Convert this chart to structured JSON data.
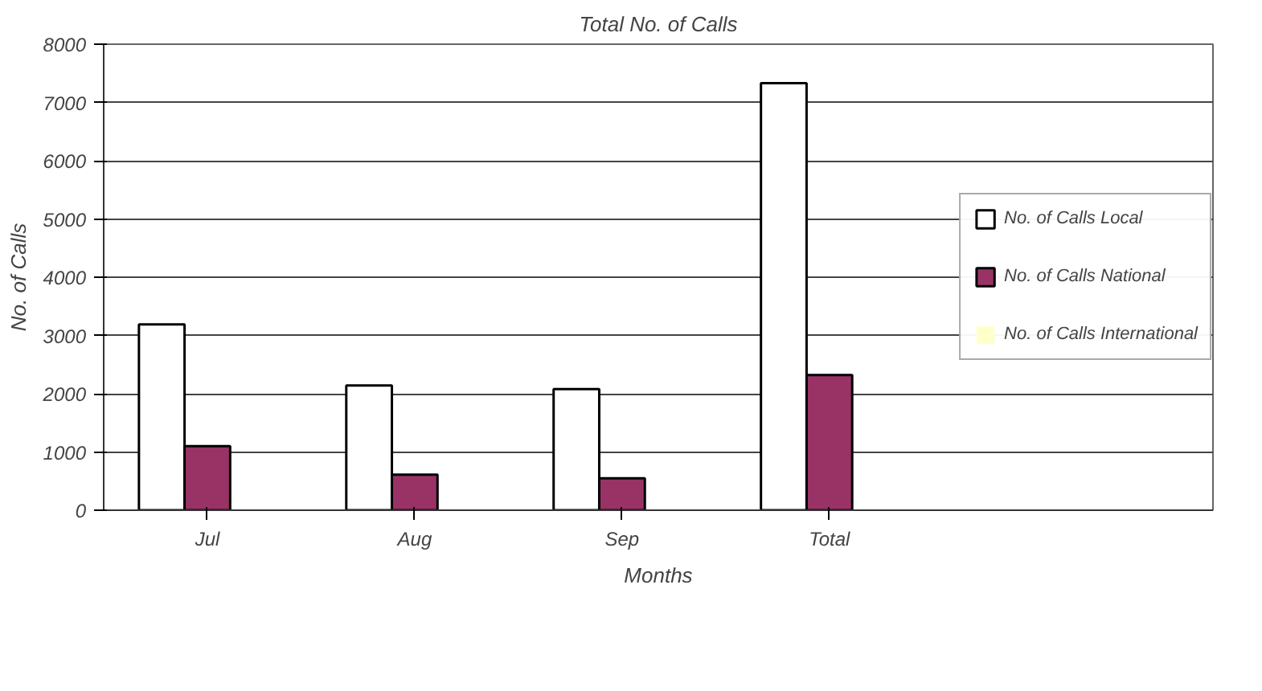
{
  "chart_data": {
    "type": "bar",
    "title": "Total No. of Calls",
    "xlabel": "Months",
    "ylabel": "No. of Calls",
    "categories": [
      "Jul",
      "Aug",
      "Sep",
      "Total"
    ],
    "series": [
      {
        "name": "No. of Calls Local",
        "color": "#ffffff",
        "values": [
          3190,
          2140,
          2080,
          7330
        ]
      },
      {
        "name": "No. of Calls National",
        "color": "#993366",
        "values": [
          1100,
          610,
          550,
          2320
        ]
      },
      {
        "name": "No. of Calls International",
        "color": "#ffffcc",
        "values": [
          0,
          0,
          0,
          0
        ]
      }
    ],
    "ylim": [
      0,
      8000
    ],
    "yticks": [
      0,
      1000,
      2000,
      3000,
      4000,
      5000,
      6000,
      7000,
      8000
    ],
    "grid": "y",
    "legend": "right"
  }
}
